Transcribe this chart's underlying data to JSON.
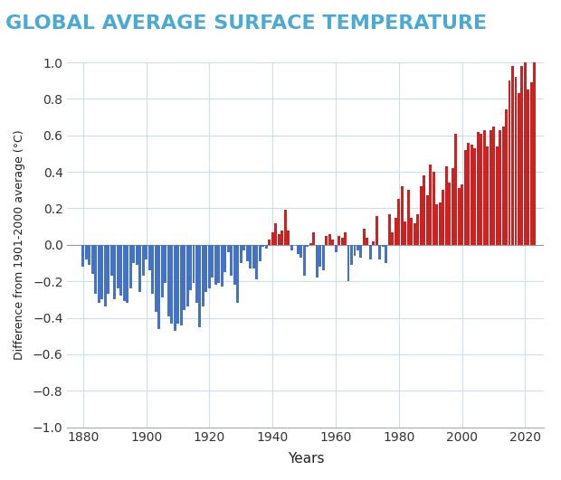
{
  "title": "GLOBAL AVERAGE SURFACE TEMPERATURE",
  "xlabel": "Years",
  "ylabel": "Difference from 1901-2000 average (°C)",
  "xlim": [
    1875,
    2026
  ],
  "ylim": [
    -1.0,
    1.0
  ],
  "xticks": [
    1880,
    1900,
    1920,
    1940,
    1960,
    1980,
    2000,
    2020
  ],
  "yticks": [
    -1.0,
    -0.8,
    -0.6,
    -0.4,
    -0.2,
    0.0,
    0.2,
    0.4,
    0.6,
    0.8,
    1.0
  ],
  "title_color": "#4BAAD4",
  "bar_color_neg": "#4472C4",
  "bar_color_pos": "#CC2222",
  "background_color": "#FFFFFF",
  "grid_color": "#CCDDEE",
  "years": [
    1880,
    1881,
    1882,
    1883,
    1884,
    1885,
    1886,
    1887,
    1888,
    1889,
    1890,
    1891,
    1892,
    1893,
    1894,
    1895,
    1896,
    1897,
    1898,
    1899,
    1900,
    1901,
    1902,
    1903,
    1904,
    1905,
    1906,
    1907,
    1908,
    1909,
    1910,
    1911,
    1912,
    1913,
    1914,
    1915,
    1916,
    1917,
    1918,
    1919,
    1920,
    1921,
    1922,
    1923,
    1924,
    1925,
    1926,
    1927,
    1928,
    1929,
    1930,
    1931,
    1932,
    1933,
    1934,
    1935,
    1936,
    1937,
    1938,
    1939,
    1940,
    1941,
    1942,
    1943,
    1944,
    1945,
    1946,
    1947,
    1948,
    1949,
    1950,
    1951,
    1952,
    1953,
    1954,
    1955,
    1956,
    1957,
    1958,
    1959,
    1960,
    1961,
    1962,
    1963,
    1964,
    1965,
    1966,
    1967,
    1968,
    1969,
    1970,
    1971,
    1972,
    1973,
    1974,
    1975,
    1976,
    1977,
    1978,
    1979,
    1980,
    1981,
    1982,
    1983,
    1984,
    1985,
    1986,
    1987,
    1988,
    1989,
    1990,
    1991,
    1992,
    1993,
    1994,
    1995,
    1996,
    1997,
    1998,
    1999,
    2000,
    2001,
    2002,
    2003,
    2004,
    2005,
    2006,
    2007,
    2008,
    2009,
    2010,
    2011,
    2012,
    2013,
    2014,
    2015,
    2016,
    2017,
    2018,
    2019,
    2020,
    2021,
    2022,
    2023
  ],
  "values": [
    -0.12,
    -0.08,
    -0.11,
    -0.16,
    -0.27,
    -0.32,
    -0.3,
    -0.34,
    -0.27,
    -0.17,
    -0.3,
    -0.24,
    -0.28,
    -0.31,
    -0.32,
    -0.24,
    -0.1,
    -0.11,
    -0.26,
    -0.17,
    -0.08,
    -0.14,
    -0.27,
    -0.37,
    -0.46,
    -0.29,
    -0.21,
    -0.39,
    -0.43,
    -0.47,
    -0.43,
    -0.44,
    -0.36,
    -0.34,
    -0.25,
    -0.21,
    -0.32,
    -0.45,
    -0.34,
    -0.26,
    -0.24,
    -0.18,
    -0.22,
    -0.21,
    -0.23,
    -0.15,
    -0.04,
    -0.17,
    -0.22,
    -0.32,
    -0.1,
    -0.03,
    -0.09,
    -0.13,
    -0.13,
    -0.19,
    -0.09,
    -0.01,
    -0.02,
    0.03,
    0.07,
    0.12,
    0.06,
    0.08,
    0.19,
    0.08,
    -0.03,
    0.0,
    -0.05,
    -0.07,
    -0.17,
    -0.01,
    0.01,
    0.07,
    -0.18,
    -0.12,
    -0.14,
    0.05,
    0.06,
    0.03,
    -0.04,
    0.05,
    0.04,
    0.07,
    -0.2,
    -0.11,
    -0.06,
    -0.03,
    -0.07,
    0.09,
    0.04,
    -0.08,
    0.02,
    0.16,
    -0.08,
    -0.01,
    -0.1,
    0.17,
    0.07,
    0.15,
    0.25,
    0.32,
    0.13,
    0.3,
    0.15,
    0.12,
    0.17,
    0.32,
    0.38,
    0.27,
    0.44,
    0.4,
    0.22,
    0.23,
    0.3,
    0.43,
    0.34,
    0.42,
    0.61,
    0.31,
    0.33,
    0.52,
    0.56,
    0.55,
    0.53,
    0.62,
    0.61,
    0.63,
    0.54,
    0.63,
    0.65,
    0.54,
    0.63,
    0.65,
    0.74,
    0.9,
    0.98,
    0.92,
    0.83,
    0.98,
    1.02,
    0.85,
    0.89,
    1.17
  ]
}
